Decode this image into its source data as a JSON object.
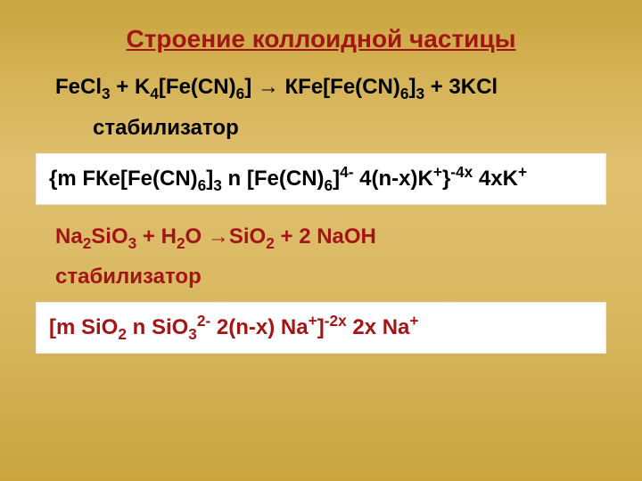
{
  "title": {
    "text": "Строение коллоидной частицы",
    "color": "#a31515",
    "fontsize": 28
  },
  "eq1": {
    "plain_parts": [
      "FeCl",
      " + K",
      "[Fe(CN)",
      "]  → КFe[Fe(CN)",
      "]",
      " + 3KCl"
    ],
    "subs": [
      "3",
      "4",
      "6",
      "6",
      "3"
    ],
    "raw": "FeCl3 + K4[Fe(CN)6] → КFe[Fe(CN)6]3 + 3KCl",
    "color": "#000000",
    "fontsize": 24
  },
  "stab1": {
    "text": "стабилизатор",
    "color": "#000000",
    "fontsize": 24
  },
  "box1": {
    "raw": "{m FКe[Fe(CN)6]3 n [Fe(CN)6]4- 4(n-x)K+}-4x 4xK+",
    "color": "#000000",
    "background": "#ffffff",
    "fontsize": 24
  },
  "eq2": {
    "raw": "Na2SiO3 + H2O → SiO2 + 2 NaOH",
    "color": "#a31515",
    "fontsize": 24
  },
  "stab2": {
    "text": "стабилизатор",
    "color": "#a31515",
    "fontsize": 24
  },
  "box2": {
    "raw": "[m SiO2 n SiO32- 2(n-x) Na+]-2x 2x Na+",
    "color": "#a31515",
    "background": "#ffffff",
    "fontsize": 24
  },
  "style": {
    "slide_bg_gradient": [
      "#c9a43f",
      "#d4b254",
      "#e0c070",
      "#d8b860",
      "#c9a43f"
    ],
    "font_family": "Arial"
  }
}
